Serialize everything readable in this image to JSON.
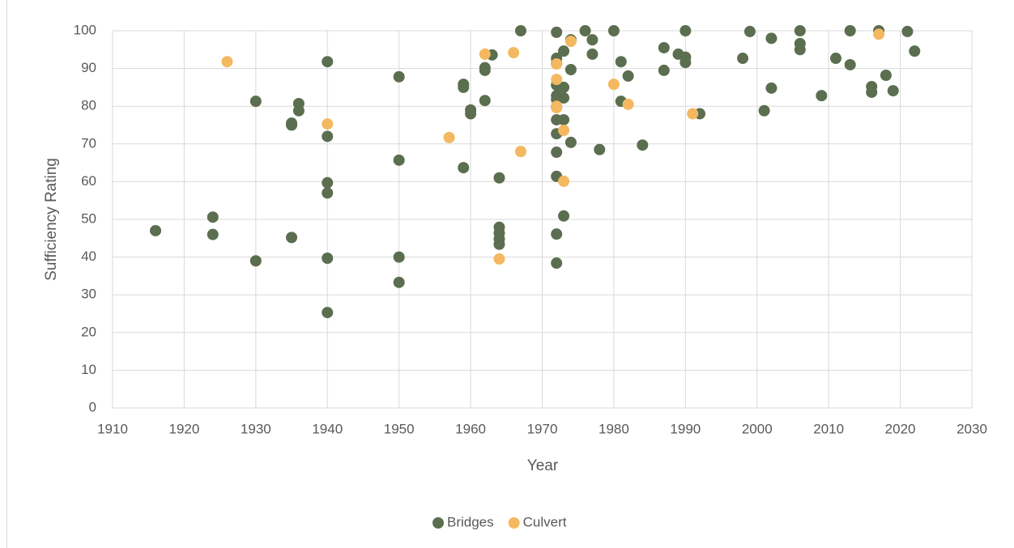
{
  "chart_data": {
    "type": "scatter",
    "x_label": "Year",
    "y_label": "Sufficiency Rating",
    "xlim": [
      1910,
      2030
    ],
    "xticks": [
      1910,
      1920,
      1930,
      1940,
      1950,
      1960,
      1970,
      1980,
      1990,
      2000,
      2010,
      2020,
      2030
    ],
    "ylim": [
      0,
      100
    ],
    "yticks": [
      0,
      10,
      20,
      30,
      40,
      50,
      60,
      70,
      80,
      90,
      100
    ],
    "grid": true,
    "legend": "bottom",
    "series": [
      {
        "name": "Bridges",
        "color": "#5b6e50",
        "x": [
          1916,
          1924,
          1924,
          1930,
          1930,
          1935,
          1935,
          1935,
          1936,
          1936,
          1940,
          1940,
          1940,
          1940,
          1940,
          1940,
          1950,
          1950,
          1950,
          1950,
          1959,
          1959,
          1960,
          1960,
          1959,
          1962,
          1962,
          1962,
          1963,
          1964,
          1964,
          1964,
          1964,
          1964,
          1967,
          1972,
          1972,
          1972,
          1972,
          1972,
          1972,
          1972,
          1972,
          1972,
          1972,
          1972,
          1972,
          1972,
          1973,
          1973,
          1973,
          1973,
          1973,
          1974,
          1974,
          1974,
          1976,
          1977,
          1977,
          1978,
          1980,
          1981,
          1981,
          1982,
          1984,
          1987,
          1987,
          1989,
          1990,
          1990,
          1990,
          1992,
          1998,
          1999,
          2001,
          2002,
          2002,
          2006,
          2006,
          2006,
          2009,
          2011,
          2013,
          2013,
          2016,
          2016,
          2017,
          2018,
          2019,
          2021,
          2022
        ],
        "values": [
          47,
          50.6,
          46,
          81.3,
          39,
          75.5,
          75,
          45.2,
          80.7,
          78.8,
          91.8,
          72,
          59.7,
          57,
          39.7,
          25.3,
          87.8,
          65.7,
          40,
          33.3,
          85.8,
          85,
          79,
          78,
          63.7,
          90.2,
          89.5,
          81.5,
          93.6,
          61,
          47.9,
          46.4,
          44.8,
          43.4,
          100,
          99.6,
          92.7,
          91.4,
          85.6,
          82.8,
          81.8,
          79.8,
          76.4,
          72.7,
          67.8,
          61.4,
          46.1,
          38.4,
          94.6,
          85,
          82.2,
          76.4,
          50.9,
          97.6,
          89.7,
          70.4,
          100,
          97.6,
          93.8,
          68.5,
          100,
          91.8,
          81.3,
          88,
          69.7,
          95.5,
          89.5,
          93.8,
          100,
          93,
          91.6,
          78,
          92.7,
          99.8,
          78.8,
          98,
          84.8,
          100,
          96.6,
          95,
          82.8,
          92.7,
          100,
          91,
          85.2,
          83.7,
          100,
          88.2,
          84.1,
          99.8,
          94.6
        ]
      },
      {
        "name": "Culvert",
        "color": "#f4b860",
        "x": [
          1926,
          1940,
          1957,
          1962,
          1964,
          1966,
          1967,
          1972,
          1972,
          1972,
          1972,
          1973,
          1973,
          1974,
          1980,
          1982,
          1991,
          2017
        ],
        "values": [
          91.8,
          75.3,
          71.7,
          93.8,
          39.5,
          94.2,
          68,
          91.2,
          87.1,
          80,
          79.6,
          73.6,
          60.1,
          97.2,
          85.8,
          80.5,
          78,
          99.1
        ]
      }
    ]
  }
}
